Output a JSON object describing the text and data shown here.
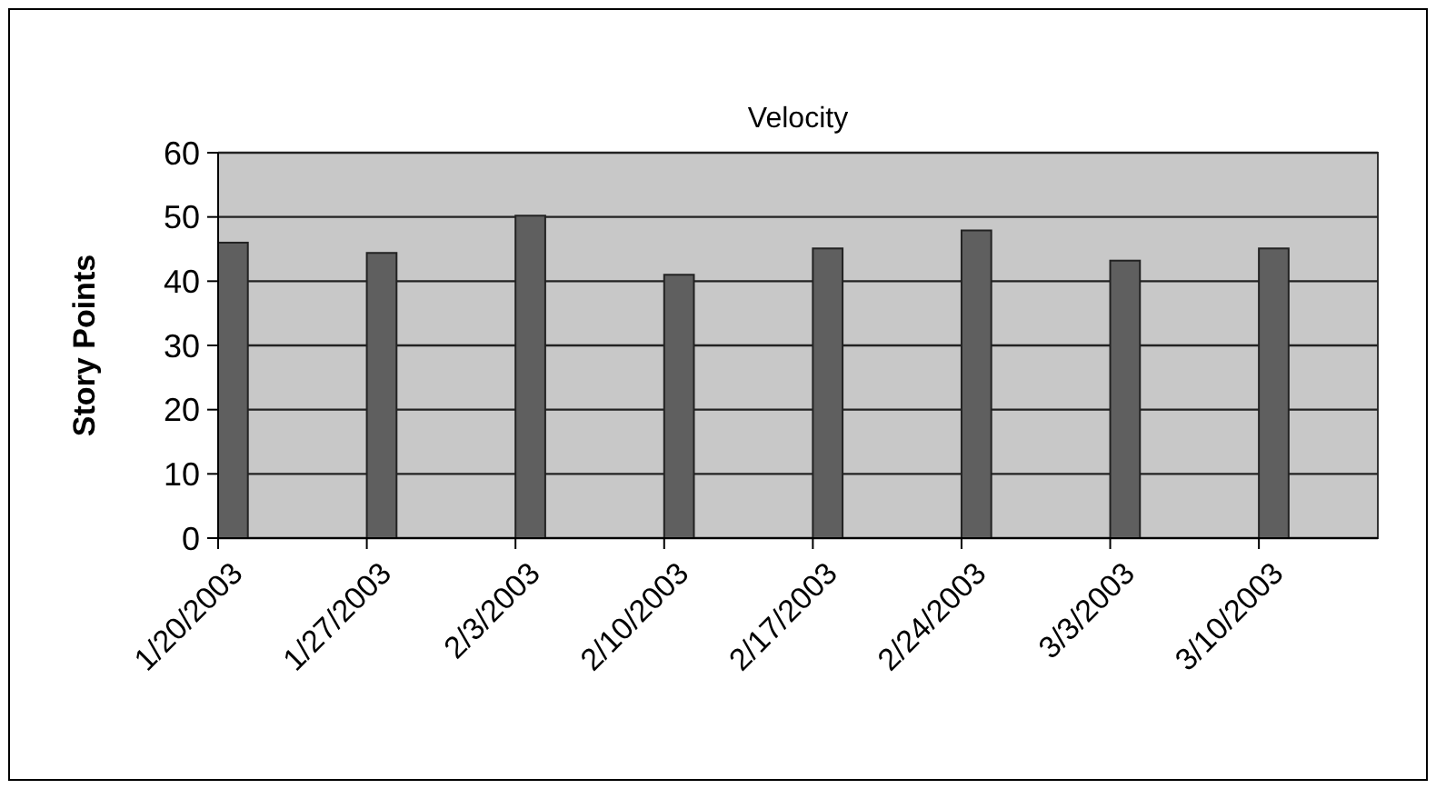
{
  "chart_data": {
    "type": "bar",
    "title": "Velocity",
    "ylabel": "Story Points",
    "categories": [
      "1/20/2003",
      "1/27/2003",
      "2/3/2003",
      "2/10/2003",
      "2/17/2003",
      "2/24/2003",
      "3/3/2003",
      "3/10/2003"
    ],
    "values": [
      46,
      44.4,
      50.2,
      41,
      45.1,
      47.9,
      43.2,
      45.1
    ],
    "color": "#5f5f5f",
    "ylim": [
      0,
      60
    ],
    "yticks": [
      0,
      10,
      20,
      30,
      40,
      50,
      60
    ],
    "grid": "y"
  }
}
